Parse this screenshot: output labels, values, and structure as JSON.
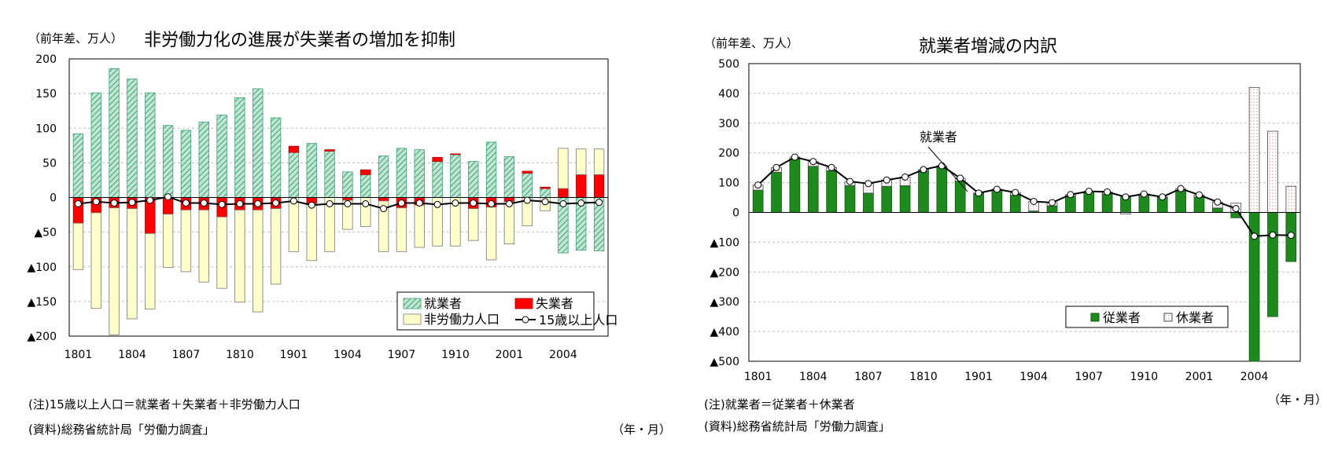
{
  "left": {
    "unit_label": "（前年差、万人）",
    "title": "非労働力化の進展が失業者の増加を抑制",
    "note": "(注)15歳以上人口＝就業者＋失業者＋非労働力人口",
    "source": "(資料)総務省統計局「労働力調査」",
    "x_unit": "（年・月）"
  },
  "right": {
    "unit_label": "（前年差、万人）",
    "title": "就業者増減の内訳",
    "note": "(注)就業者＝従業者＋休業者",
    "source": "(資料)総務省統計局「労働力調査」",
    "x_unit": "（年・月）",
    "annotation": "就業者"
  },
  "colors": {
    "employed_hatch": "#7fc9a8",
    "unemployed": "#ff0000",
    "not_in_labor": "#ffffcc",
    "workers": "#1e8a1e",
    "absent_fill": "#ffffff",
    "absent_dots": "#e06060",
    "line": "#000000",
    "grid": "#bfbfbf"
  },
  "chart_data": [
    {
      "type": "bar",
      "stacked": true,
      "title": "非労働力化の進展が失業者の増加を抑制",
      "ylabel": "（前年差、万人）",
      "xlabel": "（年・月）",
      "ylim": [
        -200,
        200
      ],
      "yticks": [
        "200",
        "150",
        "100",
        "50",
        "0",
        "▲50",
        "▲100",
        "▲150",
        "▲200"
      ],
      "xtick_labels": [
        "1801",
        "1804",
        "1807",
        "1810",
        "1901",
        "1904",
        "1907",
        "1910",
        "2001",
        "2004"
      ],
      "legend_position": "bottom-right",
      "categories": [
        "1801",
        "1802",
        "1803",
        "1804",
        "1805",
        "1806",
        "1807",
        "1808",
        "1809",
        "1810",
        "1811",
        "1812",
        "1901",
        "1902",
        "1903",
        "1904",
        "1905",
        "1906",
        "1907",
        "1908",
        "1909",
        "1910",
        "1911",
        "1912",
        "2001",
        "2002",
        "2003",
        "2004",
        "2005",
        "2006"
      ],
      "series": [
        {
          "name": "就業者",
          "kind": "bar",
          "values": [
            92,
            151,
            186,
            171,
            151,
            104,
            97,
            109,
            119,
            144,
            157,
            115,
            65,
            78,
            67,
            37,
            33,
            60,
            71,
            69,
            52,
            62,
            52,
            80,
            59,
            35,
            13,
            -80,
            -76,
            -77
          ]
        },
        {
          "name": "失業者",
          "kind": "bar",
          "values": [
            -37,
            -22,
            -15,
            -16,
            -52,
            -24,
            -18,
            -18,
            -28,
            -18,
            -18,
            -16,
            9,
            -9,
            2,
            -4,
            7,
            -5,
            -15,
            -11,
            6,
            1,
            -16,
            -14,
            -6,
            3,
            2,
            13,
            33,
            33
          ]
        },
        {
          "name": "非労働力人口",
          "kind": "bar",
          "values": [
            -67,
            -138,
            -183,
            -159,
            -109,
            -77,
            -89,
            -104,
            -103,
            -133,
            -147,
            -109,
            -78,
            -82,
            -78,
            -42,
            -42,
            -73,
            -63,
            -61,
            -70,
            -70,
            -46,
            -76,
            -61,
            -41,
            -19,
            58,
            37,
            37
          ]
        },
        {
          "name": "15歳以上人口",
          "kind": "line",
          "values": [
            -9,
            -6,
            -8,
            -7,
            -4,
            1,
            -8,
            -8,
            -10,
            -9,
            -9,
            -8,
            -5,
            -11,
            -9,
            -9,
            -9,
            -16,
            -8,
            -8,
            -10,
            -8,
            -8,
            -9,
            -9,
            -4,
            -6,
            -9,
            -8,
            -7
          ]
        }
      ]
    },
    {
      "type": "bar",
      "stacked": true,
      "title": "就業者増減の内訳",
      "ylabel": "（前年差、万人）",
      "xlabel": "（年・月）",
      "ylim": [
        -500,
        500
      ],
      "yticks": [
        "500",
        "400",
        "300",
        "200",
        "100",
        "0",
        "▲100",
        "▲200",
        "▲300",
        "▲400",
        "▲500"
      ],
      "xtick_labels": [
        "1801",
        "1804",
        "1807",
        "1810",
        "1901",
        "1904",
        "1907",
        "1910",
        "2001",
        "2004"
      ],
      "legend_position": "bottom-right",
      "categories": [
        "1801",
        "1802",
        "1803",
        "1804",
        "1805",
        "1806",
        "1807",
        "1808",
        "1809",
        "1810",
        "1811",
        "1812",
        "1901",
        "1902",
        "1903",
        "1904",
        "1905",
        "1906",
        "1907",
        "1908",
        "1909",
        "1910",
        "1911",
        "1912",
        "2001",
        "2002",
        "2003",
        "2004",
        "2005",
        "2006"
      ],
      "series": [
        {
          "name": "従業者",
          "kind": "bar",
          "values": [
            75,
            135,
            180,
            155,
            140,
            90,
            65,
            88,
            90,
            140,
            150,
            105,
            63,
            75,
            58,
            5,
            22,
            55,
            70,
            62,
            52,
            55,
            52,
            72,
            52,
            15,
            -18,
            -500,
            -350,
            -165
          ]
        },
        {
          "name": "休業者",
          "kind": "bar",
          "values": [
            17,
            16,
            6,
            16,
            11,
            14,
            32,
            21,
            29,
            4,
            7,
            10,
            2,
            3,
            9,
            32,
            11,
            5,
            1,
            7,
            -5,
            7,
            0,
            8,
            7,
            20,
            31,
            420,
            273,
            88
          ]
        },
        {
          "name": "就業者",
          "kind": "line",
          "values": [
            92,
            151,
            186,
            171,
            151,
            104,
            97,
            109,
            119,
            144,
            157,
            115,
            65,
            78,
            67,
            37,
            33,
            60,
            71,
            69,
            52,
            62,
            52,
            80,
            59,
            35,
            13,
            -80,
            -76,
            -77
          ]
        }
      ]
    }
  ]
}
